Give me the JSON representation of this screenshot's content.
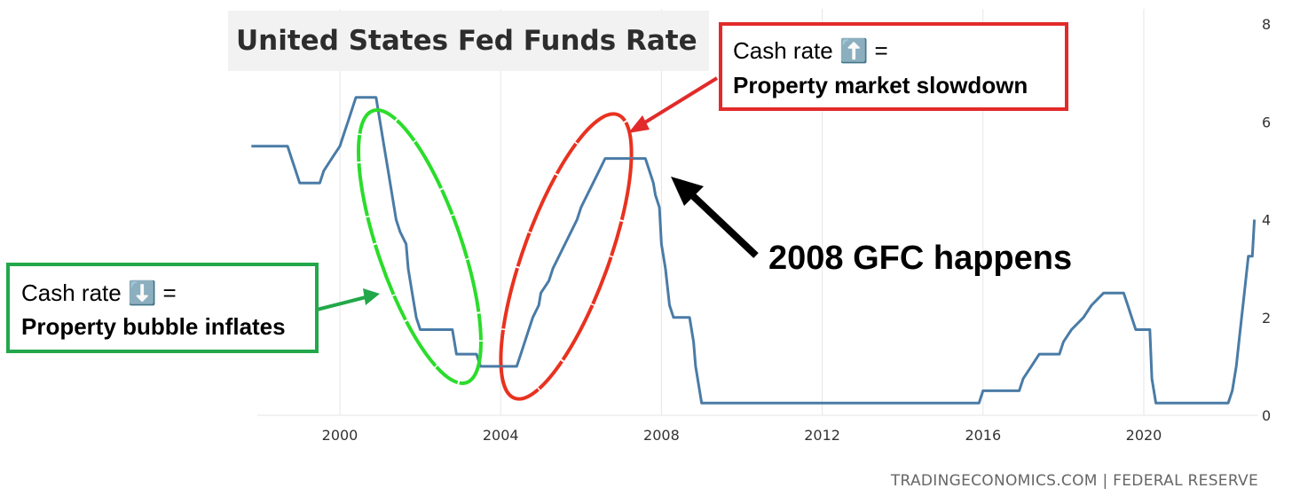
{
  "chart_data": {
    "type": "line",
    "title": "United States Fed Funds Rate",
    "source": "TRADINGECONOMICS.COM | FEDERAL RESERVE",
    "x_ticks": [
      "2000",
      "2004",
      "2008",
      "2012",
      "2016",
      "2020"
    ],
    "y_ticks": [
      "0",
      "2",
      "4",
      "6",
      "8"
    ],
    "xlim": [
      1997.8,
      2022.8
    ],
    "ylim": [
      0,
      8
    ],
    "grid": "vertical",
    "series": [
      {
        "color": "#4a7ba6",
        "points": [
          [
            1997.8,
            5.5
          ],
          [
            1998.7,
            5.5
          ],
          [
            1998.8,
            5.25
          ],
          [
            1998.9,
            5.0
          ],
          [
            1999.0,
            4.75
          ],
          [
            1999.5,
            4.75
          ],
          [
            1999.6,
            5.0
          ],
          [
            1999.8,
            5.25
          ],
          [
            2000.0,
            5.5
          ],
          [
            2000.1,
            5.75
          ],
          [
            2000.2,
            6.0
          ],
          [
            2000.4,
            6.5
          ],
          [
            2000.9,
            6.5
          ],
          [
            2001.0,
            6.0
          ],
          [
            2001.1,
            5.5
          ],
          [
            2001.2,
            5.0
          ],
          [
            2001.3,
            4.5
          ],
          [
            2001.4,
            4.0
          ],
          [
            2001.5,
            3.75
          ],
          [
            2001.65,
            3.5
          ],
          [
            2001.7,
            3.0
          ],
          [
            2001.8,
            2.5
          ],
          [
            2001.9,
            2.0
          ],
          [
            2002.0,
            1.75
          ],
          [
            2002.8,
            1.75
          ],
          [
            2002.9,
            1.25
          ],
          [
            2003.4,
            1.25
          ],
          [
            2003.5,
            1.0
          ],
          [
            2004.4,
            1.0
          ],
          [
            2004.5,
            1.25
          ],
          [
            2004.6,
            1.5
          ],
          [
            2004.7,
            1.75
          ],
          [
            2004.8,
            2.0
          ],
          [
            2004.95,
            2.25
          ],
          [
            2005.0,
            2.5
          ],
          [
            2005.2,
            2.75
          ],
          [
            2005.3,
            3.0
          ],
          [
            2005.45,
            3.25
          ],
          [
            2005.6,
            3.5
          ],
          [
            2005.75,
            3.75
          ],
          [
            2005.9,
            4.0
          ],
          [
            2006.0,
            4.25
          ],
          [
            2006.15,
            4.5
          ],
          [
            2006.3,
            4.75
          ],
          [
            2006.45,
            5.0
          ],
          [
            2006.6,
            5.25
          ],
          [
            2007.6,
            5.25
          ],
          [
            2007.7,
            5.0
          ],
          [
            2007.8,
            4.75
          ],
          [
            2007.85,
            4.5
          ],
          [
            2007.95,
            4.25
          ],
          [
            2008.0,
            3.5
          ],
          [
            2008.1,
            3.0
          ],
          [
            2008.2,
            2.25
          ],
          [
            2008.3,
            2.0
          ],
          [
            2008.7,
            2.0
          ],
          [
            2008.8,
            1.5
          ],
          [
            2008.85,
            1.0
          ],
          [
            2009.0,
            0.25
          ],
          [
            2015.9,
            0.25
          ],
          [
            2016.0,
            0.5
          ],
          [
            2016.9,
            0.5
          ],
          [
            2017.0,
            0.75
          ],
          [
            2017.2,
            1.0
          ],
          [
            2017.4,
            1.25
          ],
          [
            2017.9,
            1.25
          ],
          [
            2018.0,
            1.5
          ],
          [
            2018.2,
            1.75
          ],
          [
            2018.5,
            2.0
          ],
          [
            2018.7,
            2.25
          ],
          [
            2019.0,
            2.5
          ],
          [
            2019.5,
            2.5
          ],
          [
            2019.6,
            2.25
          ],
          [
            2019.7,
            2.0
          ],
          [
            2019.8,
            1.75
          ],
          [
            2020.15,
            1.75
          ],
          [
            2020.2,
            0.75
          ],
          [
            2020.3,
            0.25
          ],
          [
            2022.1,
            0.25
          ],
          [
            2022.2,
            0.5
          ],
          [
            2022.3,
            1.0
          ],
          [
            2022.4,
            1.75
          ],
          [
            2022.5,
            2.5
          ],
          [
            2022.6,
            3.25
          ],
          [
            2022.7,
            3.25
          ],
          [
            2022.75,
            4.0
          ]
        ]
      }
    ],
    "annotations": {
      "red_box": {
        "line1": "Cash rate ⬆️ =",
        "line2": "Property market slowdown",
        "color": "#e22a2a"
      },
      "green_box": {
        "line1": "Cash rate ⬇️ =",
        "line2": "Property bubble inflates",
        "color": "#22a84a"
      },
      "gfc_label": "2008 GFC happens"
    }
  }
}
